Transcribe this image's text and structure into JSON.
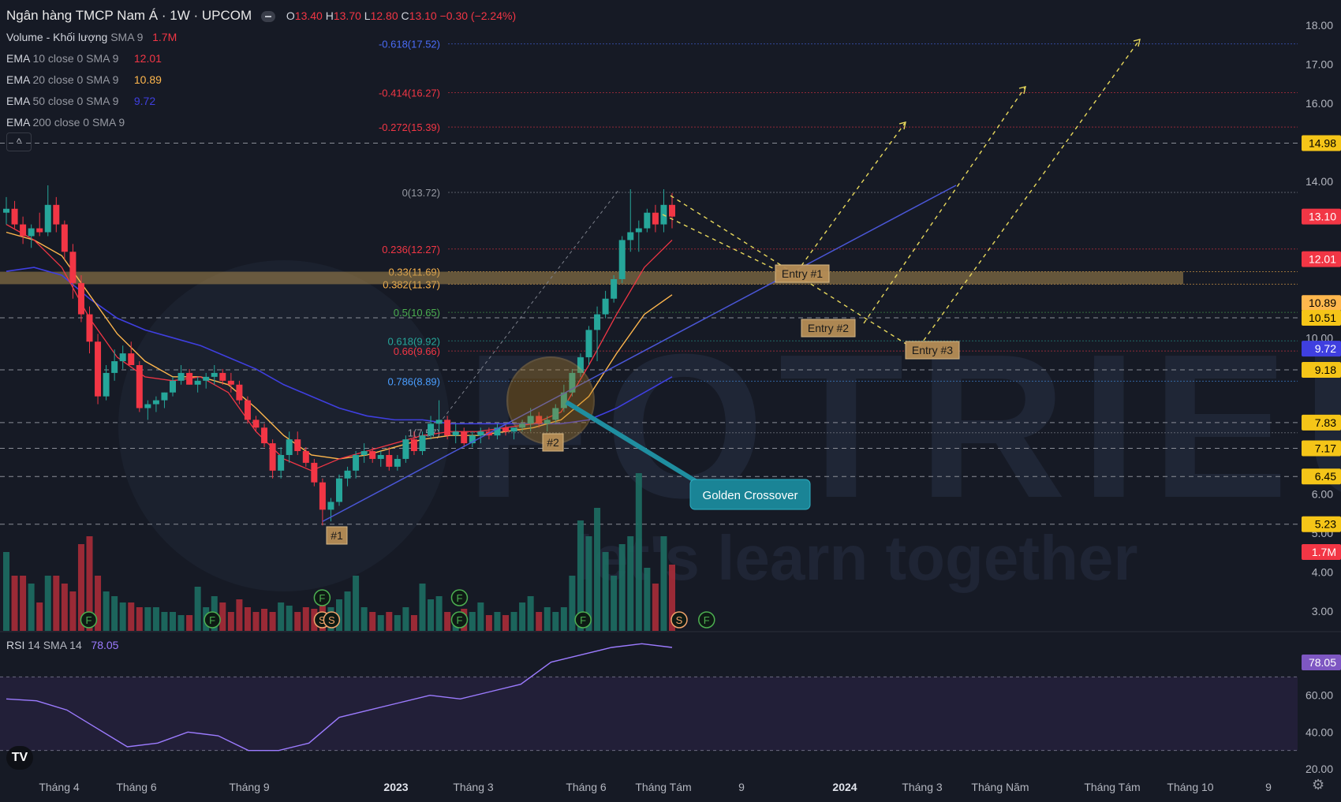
{
  "header": {
    "title": "Ngân hàng TMCP Nam Á · 1W · UPCOM",
    "o_label": "O",
    "o": "13.40",
    "h_label": "H",
    "h": "13.70",
    "l_label": "L",
    "l": "12.80",
    "c_label": "C",
    "c": "13.10",
    "change": "−0.30 (−2.24%)"
  },
  "indicators": [
    {
      "name": "Volume - Khối lượng",
      "params": "SMA 9",
      "value": "1.7M",
      "color": "#f23645"
    },
    {
      "name": "EMA",
      "params": "10 close 0 SMA 9",
      "value": "12.01",
      "color": "#f23645"
    },
    {
      "name": "EMA",
      "params": "20 close 0 SMA 9",
      "value": "10.89",
      "color": "#ffb74d"
    },
    {
      "name": "EMA",
      "params": "50 close 0 SMA 9",
      "value": "9.72",
      "color": "#3f3fe0"
    },
    {
      "name": "EMA",
      "params": "200 close 0 SMA 9",
      "value": "",
      "color": "#d1d4dc"
    }
  ],
  "collapse_icon": "^",
  "price_axis": [
    "18.00",
    "17.00",
    "16.00",
    "14.00",
    "10.00",
    "6.00",
    "5.00",
    "4.00",
    "3.00"
  ],
  "price_badges": [
    {
      "v": 14.98,
      "text": "14.98",
      "bg": "#f5c518",
      "fg": "#000"
    },
    {
      "v": 13.1,
      "text": "13.10",
      "bg": "#f23645",
      "fg": "#fff"
    },
    {
      "v": 12.01,
      "text": "12.01",
      "bg": "#f23645",
      "fg": "#fff"
    },
    {
      "v": 10.89,
      "text": "10.89",
      "bg": "#ffb74d",
      "fg": "#000"
    },
    {
      "v": 10.51,
      "text": "10.51",
      "bg": "#f5c518",
      "fg": "#000"
    },
    {
      "v": 9.72,
      "text": "9.72",
      "bg": "#3f3fe0",
      "fg": "#fff"
    },
    {
      "v": 9.18,
      "text": "9.18",
      "bg": "#f5c518",
      "fg": "#000"
    },
    {
      "v": 7.83,
      "text": "7.83",
      "bg": "#f5c518",
      "fg": "#000"
    },
    {
      "v": 7.17,
      "text": "7.17",
      "bg": "#f5c518",
      "fg": "#000"
    },
    {
      "v": 6.45,
      "text": "6.45",
      "bg": "#f5c518",
      "fg": "#000"
    },
    {
      "v": 5.23,
      "text": "5.23",
      "bg": "#f5c518",
      "fg": "#000"
    }
  ],
  "volume_badge": {
    "text": "1.7M",
    "bg": "#f23645"
  },
  "fib_levels": [
    {
      "label": "-0.618(17.52)",
      "v": 17.52,
      "color": "#4a6cf7"
    },
    {
      "label": "-0.414(16.27)",
      "v": 16.27,
      "color": "#f23645"
    },
    {
      "label": "-0.272(15.39)",
      "v": 15.39,
      "color": "#f23645"
    },
    {
      "label": "0(13.72)",
      "v": 13.72,
      "color": "#9598a1"
    },
    {
      "label": "0.236(12.27)",
      "v": 12.27,
      "color": "#f23645"
    },
    {
      "label": "0.33(11.69)",
      "v": 11.69,
      "color": "#ffb74d"
    },
    {
      "label": "0.382(11.37)",
      "v": 11.37,
      "color": "#ffb74d"
    },
    {
      "label": "0.5(10.65)",
      "v": 10.65,
      "color": "#4caf50"
    },
    {
      "label": "0.618(9.92)",
      "v": 9.92,
      "color": "#26a69a"
    },
    {
      "label": "0.66(9.66)",
      "v": 9.66,
      "color": "#f23645"
    },
    {
      "label": "0.786(8.89)",
      "v": 8.89,
      "color": "#4a9eff"
    },
    {
      "label": "1(7.57)",
      "v": 7.57,
      "color": "#9598a1"
    }
  ],
  "support_levels": [
    14.98,
    10.51,
    9.18,
    7.83,
    7.17,
    6.45,
    5.23
  ],
  "annotations": {
    "entry1": "Entry #1",
    "entry2": "Entry #2",
    "entry3": "Entry #3",
    "pivot1": "#1",
    "pivot2": "#2",
    "golden": "Golden Crossover"
  },
  "watermark": {
    "brand": "FOTRIEU",
    "slogan": "let's learn together"
  },
  "rsi": {
    "label": "RSI",
    "params": "14 SMA 14",
    "value": "78.05",
    "axis": [
      "60.00",
      "40.00",
      "20.00"
    ]
  },
  "time_axis": [
    {
      "label": "Tháng 4",
      "bold": false
    },
    {
      "label": "Tháng 6",
      "bold": false
    },
    {
      "label": "Tháng 9",
      "bold": false
    },
    {
      "label": "2023",
      "bold": true
    },
    {
      "label": "Tháng 3",
      "bold": false
    },
    {
      "label": "Tháng 6",
      "bold": false
    },
    {
      "label": "Tháng Tám",
      "bold": false
    },
    {
      "label": "9",
      "bold": false
    },
    {
      "label": "2024",
      "bold": true
    },
    {
      "label": "Tháng 3",
      "bold": false
    },
    {
      "label": "Tháng Năm",
      "bold": false
    },
    {
      "label": "Tháng Tám",
      "bold": false
    },
    {
      "label": "Tháng 10",
      "bold": false
    },
    {
      "label": "9",
      "bold": false
    }
  ],
  "colors": {
    "up": "#26a69a",
    "down": "#f23645",
    "bg": "#161a25",
    "grid": "#2a2e39"
  },
  "chart_data": {
    "type": "candlestick",
    "symbol": "Ngân hàng TMCP Nam Á · 1W · UPCOM",
    "timeframe": "1W",
    "ylim": [
      2.5,
      18.4
    ],
    "candles": [
      [
        13.2,
        13.6,
        12.9,
        13.3
      ],
      [
        13.3,
        13.5,
        12.8,
        12.9
      ],
      [
        12.9,
        13.1,
        12.4,
        12.6
      ],
      [
        12.6,
        12.9,
        12.3,
        12.8
      ],
      [
        12.8,
        13.2,
        12.6,
        12.7
      ],
      [
        12.7,
        13.9,
        12.6,
        13.4
      ],
      [
        13.4,
        13.6,
        12.7,
        12.9
      ],
      [
        12.9,
        13.0,
        12.0,
        12.2
      ],
      [
        12.2,
        12.4,
        11.0,
        11.4
      ],
      [
        11.4,
        11.6,
        10.4,
        10.6
      ],
      [
        10.6,
        10.8,
        9.6,
        9.9
      ],
      [
        9.9,
        10.1,
        8.3,
        8.5
      ],
      [
        8.5,
        9.3,
        8.4,
        9.1
      ],
      [
        9.1,
        9.7,
        8.9,
        9.4
      ],
      [
        9.4,
        9.8,
        9.2,
        9.6
      ],
      [
        9.6,
        9.9,
        9.3,
        9.3
      ],
      [
        9.3,
        9.4,
        8.1,
        8.2
      ],
      [
        8.2,
        8.4,
        7.9,
        8.3
      ],
      [
        8.3,
        8.5,
        8.1,
        8.4
      ],
      [
        8.4,
        8.6,
        8.2,
        8.6
      ],
      [
        8.6,
        9.0,
        8.5,
        8.9
      ],
      [
        8.9,
        9.3,
        8.8,
        9.1
      ],
      [
        9.1,
        9.2,
        8.8,
        8.8
      ],
      [
        8.8,
        9.0,
        8.6,
        8.9
      ],
      [
        8.9,
        9.1,
        8.7,
        9.0
      ],
      [
        9.0,
        9.3,
        8.8,
        9.1
      ],
      [
        9.1,
        9.2,
        8.8,
        8.9
      ],
      [
        8.9,
        9.1,
        8.6,
        8.8
      ],
      [
        8.8,
        8.9,
        8.3,
        8.4
      ],
      [
        8.4,
        8.5,
        7.8,
        7.9
      ],
      [
        7.9,
        8.0,
        7.6,
        7.7
      ],
      [
        7.7,
        7.8,
        7.2,
        7.3
      ],
      [
        7.3,
        7.4,
        6.4,
        6.6
      ],
      [
        6.6,
        7.2,
        6.4,
        7.0
      ],
      [
        7.0,
        7.6,
        6.8,
        7.4
      ],
      [
        7.4,
        7.6,
        7.0,
        7.1
      ],
      [
        7.1,
        7.2,
        6.7,
        6.8
      ],
      [
        6.8,
        6.9,
        6.2,
        6.3
      ],
      [
        6.3,
        6.4,
        5.2,
        5.6
      ],
      [
        5.6,
        5.9,
        5.3,
        5.8
      ],
      [
        5.8,
        6.5,
        5.7,
        6.4
      ],
      [
        6.4,
        6.7,
        6.2,
        6.6
      ],
      [
        6.6,
        7.1,
        6.4,
        7.0
      ],
      [
        7.0,
        7.3,
        6.8,
        7.1
      ],
      [
        7.1,
        7.2,
        6.8,
        6.9
      ],
      [
        6.9,
        7.1,
        6.7,
        7.0
      ],
      [
        7.0,
        7.2,
        6.6,
        6.7
      ],
      [
        6.7,
        7.0,
        6.6,
        6.9
      ],
      [
        6.9,
        7.5,
        6.8,
        7.4
      ],
      [
        7.4,
        7.6,
        7.0,
        7.1
      ],
      [
        7.1,
        7.6,
        7.0,
        7.5
      ],
      [
        7.5,
        8.0,
        7.4,
        7.8
      ],
      [
        7.8,
        8.4,
        7.6,
        7.9
      ],
      [
        7.9,
        8.0,
        7.4,
        7.5
      ],
      [
        7.5,
        7.8,
        7.3,
        7.6
      ],
      [
        7.6,
        7.7,
        7.2,
        7.3
      ],
      [
        7.3,
        7.6,
        7.2,
        7.5
      ],
      [
        7.5,
        7.7,
        7.3,
        7.6
      ],
      [
        7.6,
        7.7,
        7.4,
        7.5
      ],
      [
        7.5,
        7.8,
        7.4,
        7.7
      ],
      [
        7.7,
        7.8,
        7.5,
        7.6
      ],
      [
        7.6,
        7.7,
        7.4,
        7.7
      ],
      [
        7.7,
        7.9,
        7.6,
        7.8
      ],
      [
        7.8,
        8.2,
        7.6,
        8.0
      ],
      [
        8.0,
        8.1,
        7.7,
        7.8
      ],
      [
        7.8,
        8.0,
        7.6,
        7.9
      ],
      [
        7.9,
        8.3,
        7.8,
        8.2
      ],
      [
        8.2,
        8.8,
        8.1,
        8.6
      ],
      [
        8.6,
        9.2,
        8.5,
        9.1
      ],
      [
        9.1,
        9.6,
        9.0,
        9.5
      ],
      [
        9.5,
        10.3,
        9.3,
        10.2
      ],
      [
        10.2,
        10.8,
        9.4,
        10.6
      ],
      [
        10.6,
        11.2,
        10.5,
        11.0
      ],
      [
        11.0,
        11.6,
        10.9,
        11.5
      ],
      [
        11.5,
        12.6,
        11.4,
        12.5
      ],
      [
        12.5,
        13.8,
        12.2,
        12.7
      ],
      [
        12.7,
        13.0,
        12.2,
        12.8
      ],
      [
        12.8,
        13.3,
        12.7,
        13.2
      ],
      [
        13.2,
        13.4,
        12.7,
        12.9
      ],
      [
        12.9,
        13.8,
        12.7,
        13.4
      ],
      [
        13.4,
        13.7,
        12.8,
        13.1
      ]
    ],
    "volume_relative": [
      0.5,
      0.35,
      0.35,
      0.3,
      0.18,
      0.35,
      0.35,
      0.3,
      0.25,
      0.55,
      0.6,
      0.35,
      0.25,
      0.22,
      0.18,
      0.18,
      0.15,
      0.15,
      0.15,
      0.12,
      0.12,
      0.1,
      0.1,
      0.28,
      0.15,
      0.22,
      0.18,
      0.12,
      0.2,
      0.15,
      0.12,
      0.14,
      0.12,
      0.18,
      0.16,
      0.12,
      0.15,
      0.14,
      0.2,
      0.15,
      0.2,
      0.25,
      0.35,
      0.15,
      0.12,
      0.1,
      0.12,
      0.1,
      0.15,
      0.1,
      0.3,
      0.2,
      0.22,
      0.12,
      0.1,
      0.14,
      0.12,
      0.18,
      0.1,
      0.12,
      0.1,
      0.12,
      0.18,
      0.22,
      0.12,
      0.15,
      0.12,
      0.15,
      0.35,
      0.7,
      0.6,
      0.78,
      0.5,
      0.35,
      0.55,
      0.6,
      1.0,
      0.4,
      0.3,
      0.6,
      0.42
    ],
    "ema10_at": [
      12.9,
      12.5,
      11.8,
      10.5,
      9.5,
      9.0,
      8.9,
      9.0,
      8.6,
      7.6,
      6.9,
      6.6,
      6.9,
      7.1,
      7.3,
      7.5,
      7.6,
      7.6,
      7.7,
      7.8,
      8.1,
      9.3,
      10.6,
      11.8,
      12.5
    ],
    "ema20_at": [
      12.7,
      12.5,
      12.1,
      11.1,
      10.1,
      9.4,
      9.0,
      9.0,
      8.8,
      8.2,
      7.5,
      7.0,
      6.9,
      7.0,
      7.2,
      7.4,
      7.5,
      7.5,
      7.6,
      7.7,
      7.9,
      8.5,
      9.6,
      10.6,
      11.1
    ],
    "ema50_at": [
      11.7,
      11.8,
      11.6,
      11.0,
      10.5,
      10.2,
      10.0,
      9.8,
      9.5,
      9.2,
      8.8,
      8.5,
      8.2,
      8.0,
      7.9,
      7.9,
      7.8,
      7.8,
      7.8,
      7.8,
      7.8,
      7.9,
      8.2,
      8.6,
      9.0
    ],
    "rsi_at": [
      58,
      57,
      52,
      42,
      32,
      34,
      40,
      38,
      30,
      30,
      34,
      48,
      52,
      56,
      60,
      58,
      62,
      66,
      78,
      82,
      86,
      88,
      86
    ],
    "signals": [
      {
        "i": 6,
        "text": "F",
        "row": 1
      },
      {
        "i": 15,
        "text": "F",
        "row": 1
      },
      {
        "i": 23,
        "text": "F",
        "row": 0
      },
      {
        "i": 23,
        "text": "S",
        "row": 1
      },
      {
        "i": 23,
        "text": "S",
        "row": 1
      },
      {
        "i": 33,
        "text": "F",
        "row": 0
      },
      {
        "i": 33,
        "text": "F",
        "row": 1
      },
      {
        "i": 42,
        "text": "F",
        "row": 1
      },
      {
        "i": 49,
        "text": "S",
        "row": 1
      },
      {
        "i": 51,
        "text": "F",
        "row": 1
      }
    ]
  }
}
